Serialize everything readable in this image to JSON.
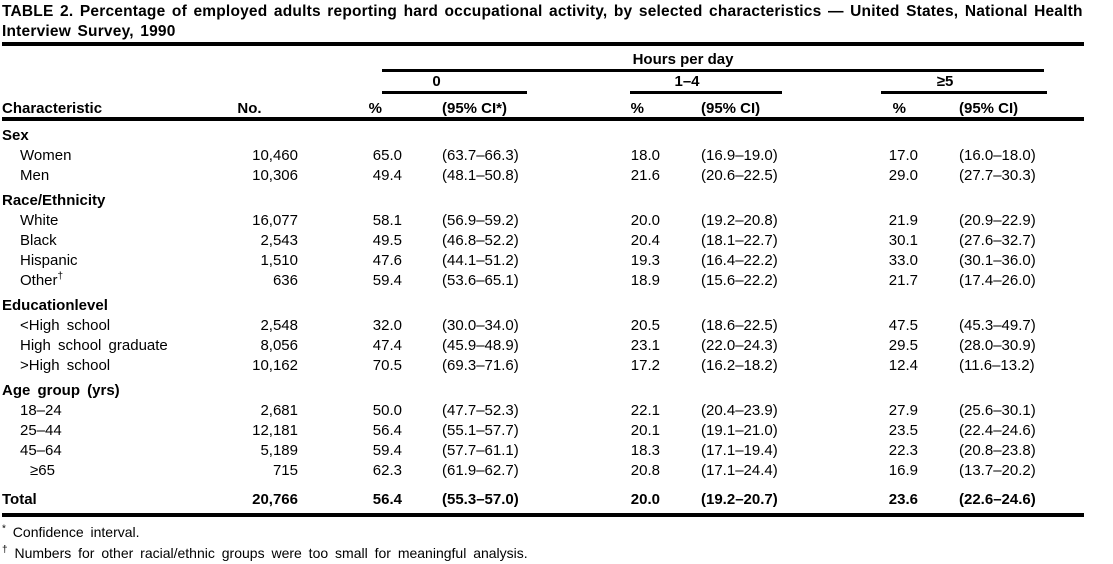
{
  "title": "TABLE 2. Percentage of employed adults reporting hard occupational activity, by selected characteristics — United States, National Health Interview Survey, 1990",
  "colors": {
    "ink": "#000000",
    "paper": "#ffffff"
  },
  "header": {
    "spanner": "Hours per day",
    "characteristic": "Characteristic",
    "no": "No.",
    "groups": [
      {
        "label": "0",
        "pct": "%",
        "ci": "(95% CI*)"
      },
      {
        "label": "1–4",
        "pct": "%",
        "ci": "(95% CI)"
      },
      {
        "label": "≥5",
        "pct": "%",
        "ci": "(95% CI)"
      }
    ]
  },
  "chart_data": {
    "type": "table",
    "title": "TABLE 2. Percentage of employed adults reporting hard occupational activity, by selected characteristics — United States, National Health Interview Survey, 1990",
    "columns": [
      "Characteristic",
      "No.",
      "0 %",
      "0 (95% CI*)",
      "1–4 %",
      "1–4 (95% CI)",
      "≥5 %",
      "≥5 (95% CI)"
    ]
  },
  "sections": [
    {
      "name": "Sex",
      "rows": [
        {
          "label": "Women",
          "no": "10,460",
          "p0": "65.0",
          "ci0": "(63.7–66.3)",
          "p1": "18.0",
          "ci1": "(16.9–19.0)",
          "p2": "17.0",
          "ci2": "(16.0–18.0)"
        },
        {
          "label": "Men",
          "no": "10,306",
          "p0": "49.4",
          "ci0": "(48.1–50.8)",
          "p1": "21.6",
          "ci1": "(20.6–22.5)",
          "p2": "29.0",
          "ci2": "(27.7–30.3)"
        }
      ]
    },
    {
      "name": "Race/Ethnicity",
      "rows": [
        {
          "label": "White",
          "no": "16,077",
          "p0": "58.1",
          "ci0": "(56.9–59.2)",
          "p1": "20.0",
          "ci1": "(19.2–20.8)",
          "p2": "21.9",
          "ci2": "(20.9–22.9)"
        },
        {
          "label": "Black",
          "no": "2,543",
          "p0": "49.5",
          "ci0": "(46.8–52.2)",
          "p1": "20.4",
          "ci1": "(18.1–22.7)",
          "p2": "30.1",
          "ci2": "(27.6–32.7)"
        },
        {
          "label": "Hispanic",
          "no": "1,510",
          "p0": "47.6",
          "ci0": "(44.1–51.2)",
          "p1": "19.3",
          "ci1": "(16.4–22.2)",
          "p2": "33.0",
          "ci2": "(30.1–36.0)"
        },
        {
          "label": "Other",
          "sup": "†",
          "no": "636",
          "p0": "59.4",
          "ci0": "(53.6–65.1)",
          "p1": "18.9",
          "ci1": "(15.6–22.2)",
          "p2": "21.7",
          "ci2": "(17.4–26.0)"
        }
      ]
    },
    {
      "name": "Educationlevel",
      "rows": [
        {
          "label": "<High school",
          "no": "2,548",
          "p0": "32.0",
          "ci0": "(30.0–34.0)",
          "p1": "20.5",
          "ci1": "(18.6–22.5)",
          "p2": "47.5",
          "ci2": "(45.3–49.7)"
        },
        {
          "label": "High school graduate",
          "no": "8,056",
          "p0": "47.4",
          "ci0": "(45.9–48.9)",
          "p1": "23.1",
          "ci1": "(22.0–24.3)",
          "p2": "29.5",
          "ci2": "(28.0–30.9)"
        },
        {
          "label": ">High school",
          "no": "10,162",
          "p0": "70.5",
          "ci0": "(69.3–71.6)",
          "p1": "17.2",
          "ci1": "(16.2–18.2)",
          "p2": "12.4",
          "ci2": "(11.6–13.2)"
        }
      ]
    },
    {
      "name": "Age group (yrs)",
      "rows": [
        {
          "label": "18–24",
          "no": "2,681",
          "p0": "50.0",
          "ci0": "(47.7–52.3)",
          "p1": "22.1",
          "ci1": "(20.4–23.9)",
          "p2": "27.9",
          "ci2": "(25.6–30.1)"
        },
        {
          "label": "25–44",
          "no": "12,181",
          "p0": "56.4",
          "ci0": "(55.1–57.7)",
          "p1": "20.1",
          "ci1": "(19.1–21.0)",
          "p2": "23.5",
          "ci2": "(22.4–24.6)"
        },
        {
          "label": "45–64",
          "no": "5,189",
          "p0": "59.4",
          "ci0": "(57.7–61.1)",
          "p1": "18.3",
          "ci1": "(17.1–19.4)",
          "p2": "22.3",
          "ci2": "(20.8–23.8)"
        },
        {
          "label": "≥65",
          "indent": 2,
          "no": "715",
          "p0": "62.3",
          "ci0": "(61.9–62.7)",
          "p1": "20.8",
          "ci1": "(17.1–24.4)",
          "p2": "16.9",
          "ci2": "(13.7–20.2)"
        }
      ]
    }
  ],
  "total": {
    "label": "Total",
    "no": "20,766",
    "p0": "56.4",
    "ci0": "(55.3–57.0)",
    "p1": "20.0",
    "ci1": "(19.2–20.7)",
    "p2": "23.6",
    "ci2": "(22.6–24.6)"
  },
  "footnotes": [
    {
      "marker": "*",
      "text": "Confidence interval."
    },
    {
      "marker": "†",
      "text": "Numbers for other racial/ethnic groups were too small for meaningful analysis."
    }
  ]
}
